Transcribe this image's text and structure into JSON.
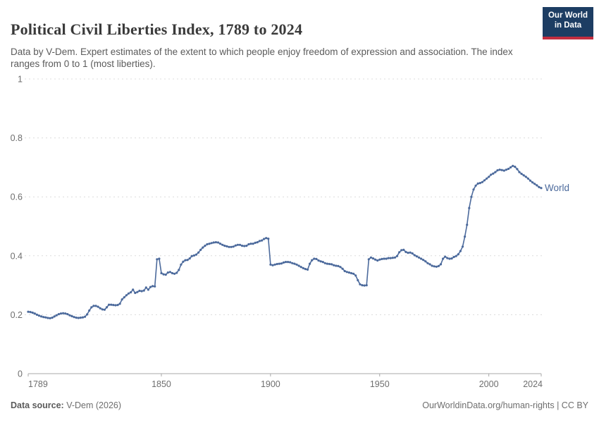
{
  "header": {
    "title": "Political Civil Liberties Index, 1789 to 2024",
    "subtitle": "Data by V-Dem. Expert estimates of the extent to which people enjoy freedom of expression and association. The index ranges from 0 to 1 (most liberties).",
    "logo": {
      "line1": "Our World",
      "line2": "in Data",
      "bg_color": "#1d3d63",
      "accent_color": "#c32e40"
    }
  },
  "footer": {
    "source_label": "Data source:",
    "source_value": " V-Dem (2026)",
    "credit": "OurWorldinData.org/human-rights | CC BY"
  },
  "colors": {
    "series_blue": "#4c6a9c",
    "gridline": "#dcdcdc",
    "axis": "#a8a8a8",
    "tick_text": "#6e6e6e"
  },
  "chart_data": {
    "type": "line",
    "title": "Political Civil Liberties Index, 1789 to 2024",
    "xlabel": "",
    "ylabel": "",
    "xlim": [
      1789,
      2024
    ],
    "ylim": [
      0,
      1
    ],
    "grid": "horizontal-dashed",
    "legend_position": "end-of-line-label",
    "end_label": "World",
    "x_ticks": [
      1789,
      1850,
      1900,
      1950,
      2000,
      2024
    ],
    "x_tick_labels": [
      "1789",
      "1850",
      "1900",
      "1950",
      "2000",
      "2024"
    ],
    "y_ticks": [
      0,
      0.2,
      0.4,
      0.6,
      0.8,
      1
    ],
    "y_tick_labels": [
      "0",
      "0.2",
      "0.4",
      "0.6",
      "0.8",
      "1"
    ],
    "series": [
      {
        "name": "World",
        "color": "#4c6a9c",
        "start_year": 1789,
        "end_year": 2024,
        "values": [
          0.21,
          0.209,
          0.207,
          0.204,
          0.2,
          0.197,
          0.194,
          0.192,
          0.191,
          0.189,
          0.188,
          0.19,
          0.194,
          0.198,
          0.202,
          0.204,
          0.205,
          0.204,
          0.202,
          0.198,
          0.195,
          0.192,
          0.19,
          0.189,
          0.19,
          0.191,
          0.193,
          0.201,
          0.214,
          0.225,
          0.23,
          0.23,
          0.227,
          0.222,
          0.218,
          0.217,
          0.225,
          0.234,
          0.234,
          0.233,
          0.232,
          0.233,
          0.237,
          0.252,
          0.259,
          0.266,
          0.272,
          0.276,
          0.285,
          0.274,
          0.277,
          0.281,
          0.28,
          0.282,
          0.292,
          0.285,
          0.294,
          0.297,
          0.296,
          0.388,
          0.39,
          0.341,
          0.337,
          0.336,
          0.343,
          0.345,
          0.341,
          0.339,
          0.342,
          0.352,
          0.37,
          0.38,
          0.385,
          0.386,
          0.391,
          0.399,
          0.401,
          0.404,
          0.411,
          0.42,
          0.428,
          0.434,
          0.439,
          0.441,
          0.443,
          0.445,
          0.446,
          0.445,
          0.441,
          0.437,
          0.434,
          0.432,
          0.43,
          0.43,
          0.431,
          0.435,
          0.437,
          0.437,
          0.434,
          0.433,
          0.434,
          0.439,
          0.441,
          0.441,
          0.444,
          0.446,
          0.45,
          0.452,
          0.457,
          0.46,
          0.458,
          0.37,
          0.368,
          0.37,
          0.372,
          0.373,
          0.374,
          0.377,
          0.379,
          0.379,
          0.378,
          0.375,
          0.373,
          0.37,
          0.366,
          0.362,
          0.358,
          0.355,
          0.353,
          0.373,
          0.385,
          0.39,
          0.389,
          0.384,
          0.381,
          0.379,
          0.375,
          0.373,
          0.372,
          0.371,
          0.368,
          0.366,
          0.365,
          0.362,
          0.356,
          0.348,
          0.345,
          0.343,
          0.341,
          0.339,
          0.333,
          0.317,
          0.303,
          0.3,
          0.299,
          0.3,
          0.388,
          0.394,
          0.391,
          0.387,
          0.384,
          0.387,
          0.389,
          0.39,
          0.39,
          0.392,
          0.392,
          0.393,
          0.394,
          0.399,
          0.412,
          0.419,
          0.42,
          0.413,
          0.41,
          0.411,
          0.408,
          0.402,
          0.398,
          0.394,
          0.39,
          0.386,
          0.381,
          0.375,
          0.371,
          0.366,
          0.364,
          0.363,
          0.365,
          0.371,
          0.39,
          0.397,
          0.392,
          0.39,
          0.391,
          0.396,
          0.399,
          0.405,
          0.416,
          0.431,
          0.465,
          0.505,
          0.562,
          0.6,
          0.625,
          0.638,
          0.645,
          0.647,
          0.65,
          0.656,
          0.662,
          0.668,
          0.675,
          0.679,
          0.684,
          0.69,
          0.692,
          0.691,
          0.689,
          0.692,
          0.695,
          0.7,
          0.705,
          0.702,
          0.694,
          0.684,
          0.678,
          0.673,
          0.668,
          0.662,
          0.655,
          0.649,
          0.644,
          0.639,
          0.633,
          0.63
        ]
      }
    ]
  }
}
